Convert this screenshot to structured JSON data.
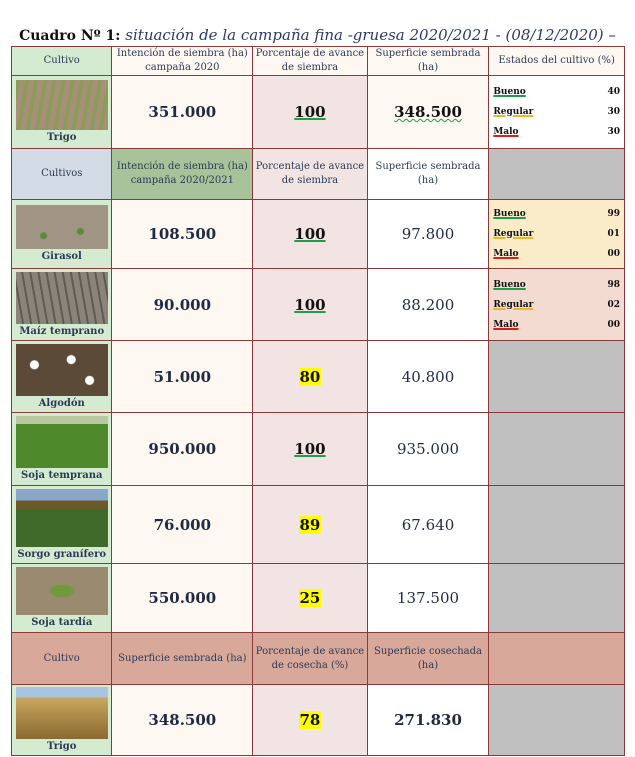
{
  "title": {
    "prefix": "Cuadro Nº 1:",
    "text": "situación de la campaña fina -gruesa 2020/2021 - (08/12/2020) –"
  },
  "header1": {
    "c1": "Cultivo",
    "c2": "Intención de siembra (ha) campaña 2020",
    "c3": "Porcentaje de avance de siembra",
    "c4": "Superficie sembrada (ha)",
    "c5": "Estados del cultivo (%)"
  },
  "trigo1": {
    "name": "Trigo",
    "intencion": "351.000",
    "avance": "100",
    "superficie": "348.500",
    "estados": [
      {
        "label": "Bueno",
        "value": "40"
      },
      {
        "label": "Regular",
        "value": "30"
      },
      {
        "label": "Malo",
        "value": "30"
      }
    ]
  },
  "header2": {
    "c1": "Cultivos",
    "c2": "Intención de siembra (ha) campaña 2020/2021",
    "c3": "Porcentaje de avance de siembra",
    "c4": "Superficie sembrada (ha)"
  },
  "rows": [
    {
      "name": "Girasol",
      "intencion": "108.500",
      "avance": "100",
      "superficie": "97.800",
      "estados": [
        {
          "label": "Bueno",
          "value": "99"
        },
        {
          "label": "Regular",
          "value": "01"
        },
        {
          "label": "Malo",
          "value": "00"
        }
      ]
    },
    {
      "name": "Maíz temprano",
      "intencion": "90.000",
      "avance": "100",
      "superficie": "88.200",
      "estados": [
        {
          "label": "Bueno",
          "value": "98"
        },
        {
          "label": "Regular",
          "value": "02"
        },
        {
          "label": "Malo",
          "value": "00"
        }
      ]
    },
    {
      "name": "Algodón",
      "intencion": "51.000",
      "avance": "80",
      "superficie": "40.800"
    },
    {
      "name": "Soja temprana",
      "intencion": "950.000",
      "avance": "100",
      "superficie": "935.000"
    },
    {
      "name": "Sorgo granífero",
      "intencion": "76.000",
      "avance": "89",
      "superficie": "67.640"
    },
    {
      "name": "Soja tardía",
      "intencion": "550.000",
      "avance": "25",
      "superficie": "137.500"
    }
  ],
  "header3": {
    "c1": "Cultivo",
    "c2": "Superficie sembrada (ha)",
    "c3": "Porcentaje de avance de cosecha (%)",
    "c4": "Superficie cosechada (ha)"
  },
  "trigo2": {
    "name": "Trigo",
    "sembrada": "348.500",
    "avance": "78",
    "cosechada": "271.830"
  }
}
